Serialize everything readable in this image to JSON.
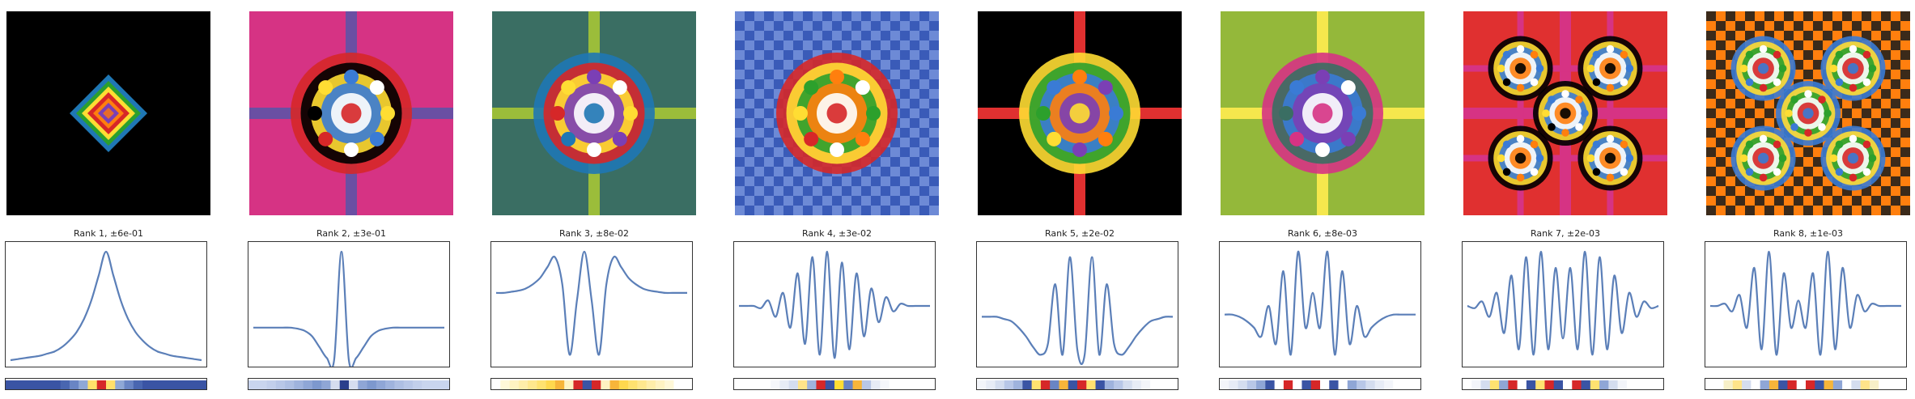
{
  "chart_data": [
    {
      "type": "line",
      "title": "Rank 1, ±6e-01",
      "xlabel": "",
      "ylabel": "",
      "grid": false,
      "pattern": {
        "base": "#000000",
        "shape": "diamond",
        "palette": [
          "#1f77b4",
          "#2ca02c",
          "#ffdd33",
          "#d62728",
          "#ff7f0e",
          "#7b3fb5",
          "#e66b2b"
        ]
      },
      "series": [
        {
          "values": [
            0.0,
            0.01,
            0.02,
            0.03,
            0.04,
            0.06,
            0.08,
            0.12,
            0.18,
            0.26,
            0.38,
            0.55,
            0.78,
            1.0,
            0.78,
            0.55,
            0.38,
            0.26,
            0.18,
            0.12,
            0.08,
            0.06,
            0.04,
            0.03,
            0.02,
            0.01,
            0.0
          ]
        }
      ],
      "strip": [
        "#3a54a4",
        "#3a54a4",
        "#3a54a4",
        "#3a54a4",
        "#3a54a4",
        "#3a54a4",
        "#4966b0",
        "#6985c4",
        "#8fa8d6",
        "#ffe06a",
        "#d62728",
        "#ffe06a",
        "#8fa8d6",
        "#6985c4",
        "#4966b0",
        "#3a54a4",
        "#3a54a4",
        "#3a54a4",
        "#3a54a4",
        "#3a54a4",
        "#3a54a4",
        "#3a54a4"
      ]
    },
    {
      "type": "line",
      "title": "Rank 2, ±3e-01",
      "xlabel": "",
      "ylabel": "",
      "grid": false,
      "pattern": {
        "base": "#d63384",
        "shape": "cross",
        "cross": "#6a4fa3",
        "palette": [
          "#d62728",
          "#000000",
          "#ffdd33",
          "#3a7bd5",
          "#ffffff"
        ]
      },
      "series": [
        {
          "values": [
            0.3,
            0.3,
            0.3,
            0.3,
            0.3,
            0.3,
            0.29,
            0.27,
            0.22,
            0.12,
            0.02,
            0.0,
            1.0,
            0.0,
            0.02,
            0.12,
            0.22,
            0.27,
            0.29,
            0.3,
            0.3,
            0.3,
            0.3,
            0.3,
            0.3,
            0.3,
            0.3
          ]
        }
      ],
      "strip": [
        "#c9d5ee",
        "#c9d5ee",
        "#c2cfeb",
        "#b8c7e7",
        "#aebfe3",
        "#9fb3dd",
        "#8fa6d6",
        "#7d98ce",
        "#8fa6d6",
        "#d6ddef",
        "#2b3f8c",
        "#d6ddef",
        "#8fa6d6",
        "#7d98ce",
        "#8fa6d6",
        "#9fb3dd",
        "#aebfe3",
        "#b8c7e7",
        "#c2cfeb",
        "#c9d5ee",
        "#c9d5ee",
        "#c9d5ee"
      ]
    },
    {
      "type": "line",
      "title": "Rank 3, ±8e-02",
      "xlabel": "",
      "ylabel": "",
      "grid": false,
      "pattern": {
        "base": "#3a6e63",
        "shape": "cross",
        "cross": "#9bbd3a",
        "palette": [
          "#1f77b4",
          "#d62728",
          "#ffdd33",
          "#7b3fb5",
          "#ffffff"
        ]
      },
      "series": [
        {
          "values": [
            0.62,
            0.62,
            0.63,
            0.64,
            0.66,
            0.7,
            0.76,
            0.86,
            0.95,
            0.7,
            0.05,
            0.55,
            1.0,
            0.55,
            0.05,
            0.7,
            0.95,
            0.86,
            0.76,
            0.7,
            0.66,
            0.64,
            0.63,
            0.62,
            0.62,
            0.62,
            0.62
          ]
        }
      ],
      "strip": [
        "#ffffff",
        "#fff8d8",
        "#fff3c2",
        "#ffeeaa",
        "#ffe88e",
        "#ffe270",
        "#ffd84e",
        "#f7b53a",
        "#fff3c2",
        "#d62728",
        "#3a54a4",
        "#d62728",
        "#fff3c2",
        "#f7b53a",
        "#ffd84e",
        "#ffe270",
        "#ffe88e",
        "#ffeeaa",
        "#fff3c2",
        "#fff8d8",
        "#ffffff",
        "#ffffff"
      ]
    },
    {
      "type": "line",
      "title": "Rank 4, ±3e-02",
      "xlabel": "",
      "ylabel": "",
      "grid": false,
      "pattern": {
        "base": "#3a5bb8",
        "shape": "checker",
        "checker": "#6d8ad6",
        "palette": [
          "#d62728",
          "#ffdd33",
          "#2ca02c",
          "#ff7f0e",
          "#ffffff"
        ]
      },
      "series": [
        {
          "values": [
            0.5,
            0.5,
            0.5,
            0.48,
            0.55,
            0.4,
            0.62,
            0.3,
            0.8,
            0.15,
            0.95,
            0.05,
            1.0,
            0.02,
            0.9,
            0.1,
            0.8,
            0.22,
            0.66,
            0.35,
            0.58,
            0.45,
            0.52,
            0.5,
            0.5,
            0.5,
            0.5
          ]
        }
      ],
      "strip": [
        "#ffffff",
        "#ffffff",
        "#ffffff",
        "#ffffff",
        "#f5f7fb",
        "#e7ecf6",
        "#d4ddef",
        "#ffe48a",
        "#9fb3dd",
        "#d62728",
        "#3a54a4",
        "#ffdd33",
        "#6985c4",
        "#f7b53a",
        "#b8c7e7",
        "#e7ecf6",
        "#f5f7fb",
        "#ffffff",
        "#ffffff",
        "#ffffff",
        "#ffffff",
        "#ffffff"
      ]
    },
    {
      "type": "line",
      "title": "Rank 5, ±2e-02",
      "xlabel": "",
      "ylabel": "",
      "grid": false,
      "pattern": {
        "base": "#000000",
        "shape": "cross",
        "cross": "#e03030",
        "palette": [
          "#ffdd33",
          "#2ca02c",
          "#3a7bd5",
          "#ff7f0e",
          "#7b3fb5"
        ]
      },
      "series": [
        {
          "values": [
            0.4,
            0.4,
            0.4,
            0.38,
            0.36,
            0.3,
            0.22,
            0.12,
            0.05,
            0.15,
            0.7,
            0.05,
            0.95,
            0.1,
            0.05,
            0.95,
            0.05,
            0.7,
            0.15,
            0.05,
            0.12,
            0.22,
            0.3,
            0.36,
            0.38,
            0.4,
            0.4
          ]
        }
      ],
      "strip": [
        "#f3f5fa",
        "#e7ecf6",
        "#d4ddef",
        "#b8c7e7",
        "#9fb3dd",
        "#3a54a4",
        "#ffe270",
        "#d62728",
        "#6985c4",
        "#f7b53a",
        "#3a54a4",
        "#d62728",
        "#ffe270",
        "#3a54a4",
        "#9fb3dd",
        "#b8c7e7",
        "#d4ddef",
        "#e7ecf6",
        "#f3f5fa",
        "#ffffff",
        "#ffffff",
        "#ffffff"
      ]
    },
    {
      "type": "line",
      "title": "Rank 6, ±8e-03",
      "xlabel": "",
      "ylabel": "",
      "grid": false,
      "pattern": {
        "base": "#94b83a",
        "shape": "cross",
        "cross": "#f5e74d",
        "palette": [
          "#d63384",
          "#3a6e63",
          "#3a7bd5",
          "#7b3fb5",
          "#ffffff"
        ]
      },
      "series": [
        {
          "values": [
            0.42,
            0.42,
            0.4,
            0.36,
            0.3,
            0.22,
            0.5,
            0.15,
            0.82,
            0.05,
            1.0,
            0.3,
            0.62,
            0.3,
            1.0,
            0.05,
            0.82,
            0.15,
            0.5,
            0.22,
            0.3,
            0.36,
            0.4,
            0.42,
            0.42,
            0.42,
            0.42
          ]
        }
      ],
      "strip": [
        "#f3f5fa",
        "#e7ecf6",
        "#d4ddef",
        "#b8c7e7",
        "#8fa6d6",
        "#3a54a4",
        "#ffffff",
        "#d62728",
        "#ffffff",
        "#3a54a4",
        "#d62728",
        "#ffffff",
        "#3a54a4",
        "#ffffff",
        "#8fa6d6",
        "#b8c7e7",
        "#d4ddef",
        "#e7ecf6",
        "#f3f5fa",
        "#ffffff",
        "#ffffff",
        "#ffffff"
      ]
    },
    {
      "type": "line",
      "title": "Rank 7, ±2e-03",
      "xlabel": "",
      "ylabel": "",
      "grid": false,
      "pattern": {
        "base": "#e03030",
        "shape": "grid",
        "cross": "#d63384",
        "palette": [
          "#000000",
          "#ffdd33",
          "#3a7bd5",
          "#ffffff",
          "#ff7f0e"
        ]
      },
      "series": [
        {
          "values": [
            0.5,
            0.48,
            0.54,
            0.4,
            0.62,
            0.25,
            0.78,
            0.1,
            0.95,
            0.05,
            1.0,
            0.1,
            0.85,
            0.2,
            0.85,
            0.1,
            1.0,
            0.05,
            0.95,
            0.1,
            0.78,
            0.25,
            0.62,
            0.4,
            0.54,
            0.48,
            0.5
          ]
        }
      ],
      "strip": [
        "#ffffff",
        "#f3f5fa",
        "#d4ddef",
        "#ffe270",
        "#8fa6d6",
        "#d62728",
        "#ffffff",
        "#3a54a4",
        "#ffe270",
        "#d62728",
        "#3a54a4",
        "#ffffff",
        "#d62728",
        "#3a54a4",
        "#ffe270",
        "#8fa6d6",
        "#d4ddef",
        "#f3f5fa",
        "#ffffff",
        "#ffffff",
        "#ffffff",
        "#ffffff"
      ]
    },
    {
      "type": "line",
      "title": "Rank 8, ±1e-03",
      "xlabel": "",
      "ylabel": "",
      "grid": false,
      "pattern": {
        "base": "#ff7f0e",
        "shape": "checker",
        "checker": "#3b2a1a",
        "palette": [
          "#3a7bd5",
          "#ffdd33",
          "#2ca02c",
          "#ffffff",
          "#d62728"
        ]
      },
      "series": [
        {
          "values": [
            0.5,
            0.5,
            0.52,
            0.45,
            0.6,
            0.3,
            0.85,
            0.1,
            1.0,
            0.05,
            0.8,
            0.3,
            0.55,
            0.3,
            0.8,
            0.05,
            1.0,
            0.1,
            0.85,
            0.3,
            0.6,
            0.45,
            0.52,
            0.5,
            0.5,
            0.5,
            0.5
          ]
        }
      ],
      "strip": [
        "#ffffff",
        "#ffffff",
        "#f7f0c8",
        "#ffe48a",
        "#d4ddef",
        "#ffffff",
        "#8fa6d6",
        "#f7b53a",
        "#3a54a4",
        "#d62728",
        "#ffffff",
        "#d62728",
        "#3a54a4",
        "#f7b53a",
        "#8fa6d6",
        "#ffffff",
        "#d4ddef",
        "#ffe48a",
        "#f7f0c8",
        "#ffffff",
        "#ffffff",
        "#ffffff"
      ]
    }
  ]
}
